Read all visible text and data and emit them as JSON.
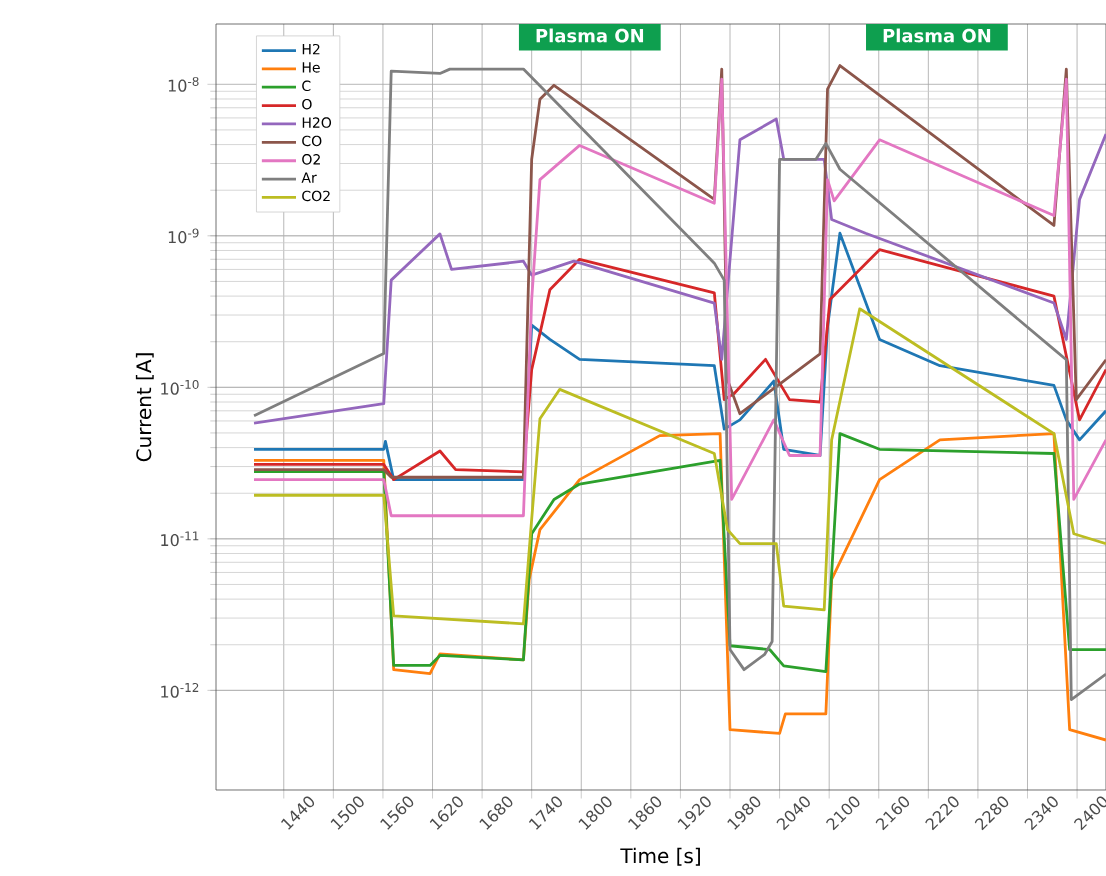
{
  "chart_data": {
    "type": "line",
    "xlabel": "Time [s]",
    "ylabel": "Current [A]",
    "log": "y",
    "grid": true,
    "legend": "top left",
    "xlim": [
      1358,
      2435
    ],
    "ylim": [
      2.2e-13,
      2.5e-08
    ],
    "xticks": [
      1440,
      1500,
      1560,
      1620,
      1680,
      1740,
      1800,
      1860,
      1920,
      1980,
      2040,
      2100,
      2160,
      2220,
      2280,
      2340,
      2400
    ],
    "yticks": [
      {
        "value": 1e-12,
        "label": "10$^{-12}$"
      },
      {
        "value": 1e-11,
        "label": "10$^{-11}$"
      },
      {
        "value": 1e-10,
        "label": "10$^{-10}$"
      },
      {
        "value": 1e-09,
        "label": "10$^{-9}$"
      },
      {
        "value": 1e-08,
        "label": "10$^{-8}$"
      }
    ],
    "annotations": [
      "Plasma ON",
      "Plasma ON"
    ],
    "series": [
      {
        "name": "H2",
        "color": "#1f77b4",
        "x": [
          1404,
          1561,
          1563,
          1573,
          1730,
          1740,
          1762,
          1798,
          1961,
          1973,
          1992,
          2033,
          2045,
          2089,
          2098,
          2113,
          2161,
          2234,
          2372,
          2387,
          2403,
          2435
        ],
        "values": [
          3.9e-11,
          3.9e-11,
          4.4e-11,
          2.46e-11,
          2.46e-11,
          2.57e-10,
          2.07e-10,
          1.53e-10,
          1.39e-10,
          5.3e-11,
          6.1e-11,
          1.1e-10,
          3.9e-11,
          3.55e-11,
          2.5e-10,
          1.04e-09,
          2.07e-10,
          1.39e-10,
          1.03e-10,
          6.1e-11,
          4.5e-11,
          7e-11
        ]
      },
      {
        "name": "He",
        "color": "#ff7f0e",
        "x": [
          1404,
          1561,
          1573,
          1617,
          1629,
          1730,
          1737,
          1750,
          1798,
          1895,
          1968,
          1980,
          2040,
          2047,
          2096,
          2103,
          2161,
          2234,
          2372,
          2391,
          2435
        ],
        "values": [
          3.3e-11,
          3.3e-11,
          1.37e-12,
          1.29e-12,
          1.74e-12,
          1.59e-12,
          5.4e-12,
          1.15e-11,
          2.46e-11,
          4.8e-11,
          4.95e-11,
          5.5e-13,
          5.2e-13,
          7e-13,
          7e-13,
          5.4e-12,
          2.46e-11,
          4.5e-11,
          4.95e-11,
          5.5e-13,
          4.7e-13
        ]
      },
      {
        "name": "C",
        "color": "#2ca02c",
        "x": [
          1404,
          1561,
          1573,
          1617,
          1629,
          1730,
          1740,
          1767,
          1798,
          1968,
          1980,
          2028,
          2045,
          2096,
          2113,
          2161,
          2372,
          2391,
          2435
        ],
        "values": [
          2.78e-11,
          2.78e-11,
          1.46e-12,
          1.46e-12,
          1.7e-12,
          1.59e-12,
          1.08e-11,
          1.82e-11,
          2.3e-11,
          3.3e-11,
          1.97e-12,
          1.86e-12,
          1.45e-12,
          1.33e-12,
          4.95e-11,
          3.9e-11,
          3.66e-11,
          1.86e-12,
          1.86e-12
        ]
      },
      {
        "name": "O",
        "color": "#d62728",
        "x": [
          1404,
          1561,
          1573,
          1629,
          1648,
          1730,
          1740,
          1762,
          1798,
          1961,
          1973,
          1985,
          2023,
          2052,
          2089,
          2101,
          2161,
          2372,
          2403,
          2435
        ],
        "values": [
          3.1e-11,
          3.1e-11,
          2.46e-11,
          3.8e-11,
          2.86e-11,
          2.77e-11,
          1.31e-10,
          4.4e-10,
          7e-10,
          4.2e-10,
          8.3e-11,
          9.1e-11,
          1.53e-10,
          8.3e-11,
          8e-11,
          3.8e-10,
          8.1e-10,
          4e-10,
          6.1e-11,
          1.31e-10
        ]
      },
      {
        "name": "H2O",
        "color": "#9467bd",
        "x": [
          1404,
          1561,
          1570,
          1629,
          1643,
          1730,
          1740,
          1791,
          1961,
          1970,
          1992,
          2036,
          2045,
          2094,
          2103,
          2144,
          2372,
          2387,
          2403,
          2435
        ],
        "values": [
          5.8e-11,
          7.8e-11,
          5.1e-10,
          1.03e-09,
          6e-10,
          6.8e-10,
          5.5e-10,
          6.8e-10,
          3.6e-10,
          1.53e-10,
          4.3e-09,
          5.9e-09,
          3.2e-09,
          3.2e-09,
          1.28e-09,
          1.04e-09,
          3.6e-10,
          2.07e-10,
          1.74e-09,
          4.7e-09
        ]
      },
      {
        "name": "CO",
        "color": "#8c564b",
        "x": [
          1404,
          1561,
          1570,
          1730,
          1740,
          1750,
          1767,
          1961,
          1970,
          1977,
          1992,
          2089,
          2098,
          2113,
          2372,
          2387,
          2399,
          2435
        ],
        "values": [
          2.86e-11,
          2.86e-11,
          2.55e-11,
          2.55e-11,
          3.2e-09,
          7.96e-09,
          9.85e-09,
          1.74e-09,
          1.26e-08,
          1.12e-10,
          6.7e-11,
          1.66e-10,
          9.3e-09,
          1.33e-08,
          1.17e-09,
          1.26e-08,
          8.3e-11,
          1.52e-10
        ]
      },
      {
        "name": "O2",
        "color": "#e377c2",
        "x": [
          1404,
          1561,
          1570,
          1730,
          1740,
          1750,
          1798,
          1961,
          1970,
          1982,
          2033,
          2052,
          2089,
          2098,
          2106,
          2161,
          2372,
          2387,
          2396,
          2435
        ],
        "values": [
          2.46e-11,
          2.46e-11,
          1.42e-11,
          1.42e-11,
          3.8e-10,
          2.35e-09,
          3.95e-09,
          1.64e-09,
          1.08e-08,
          1.82e-11,
          6.1e-11,
          3.55e-11,
          3.55e-11,
          2.35e-09,
          1.7e-09,
          4.3e-09,
          1.36e-09,
          1.08e-08,
          1.82e-11,
          4.5e-11
        ]
      },
      {
        "name": "Ar",
        "color": "#7f7f7f",
        "x": [
          1404,
          1561,
          1570,
          1629,
          1641,
          1730,
          1961,
          1973,
          1980,
          1997,
          2022,
          2031,
          2040,
          2084,
          2096,
          2113,
          2372,
          2387,
          2393,
          2435
        ],
        "values": [
          6.5e-11,
          1.67e-10,
          1.22e-08,
          1.18e-08,
          1.26e-08,
          1.26e-08,
          6.6e-10,
          5.1e-10,
          1.86e-12,
          1.37e-12,
          1.73e-12,
          2.1e-12,
          3.2e-09,
          3.2e-09,
          4.07e-09,
          2.75e-09,
          1.78e-10,
          1.52e-10,
          8.7e-13,
          1.28e-12
        ]
      },
      {
        "name": "CO2",
        "color": "#bcbd22",
        "x": [
          1404,
          1561,
          1573,
          1730,
          1740,
          1750,
          1774,
          1961,
          1977,
          1992,
          2036,
          2045,
          2094,
          2103,
          2137,
          2372,
          2396,
          2435
        ],
        "values": [
          1.94e-11,
          1.94e-11,
          3.1e-12,
          2.75e-12,
          1.35e-11,
          6.2e-11,
          9.7e-11,
          3.66e-11,
          1.15e-11,
          9.3e-12,
          9.3e-12,
          3.6e-12,
          3.4e-12,
          4.5e-11,
          3.3e-10,
          4.95e-11,
          1.08e-11,
          9.3e-12
        ]
      }
    ]
  }
}
